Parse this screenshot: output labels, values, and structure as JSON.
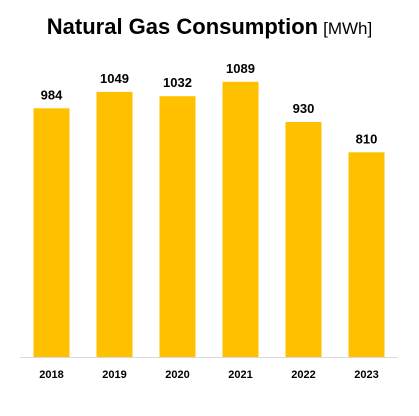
{
  "chart_data": {
    "type": "bar",
    "title": "Natural Gas Consumption",
    "title_unit": "[MWh]",
    "categories": [
      "2018",
      "2019",
      "2020",
      "2021",
      "2022",
      "2023"
    ],
    "values": [
      984,
      1049,
      1032,
      1089,
      930,
      810
    ],
    "data_labels": [
      "984",
      "1049",
      "1032",
      "1089",
      "930",
      "810"
    ],
    "xlabel": "",
    "ylabel": "",
    "ylim": [
      0,
      1200
    ],
    "grid": false,
    "legend": "none",
    "bar_color": "#FFC000",
    "axis_color": "#D9D9D9"
  }
}
